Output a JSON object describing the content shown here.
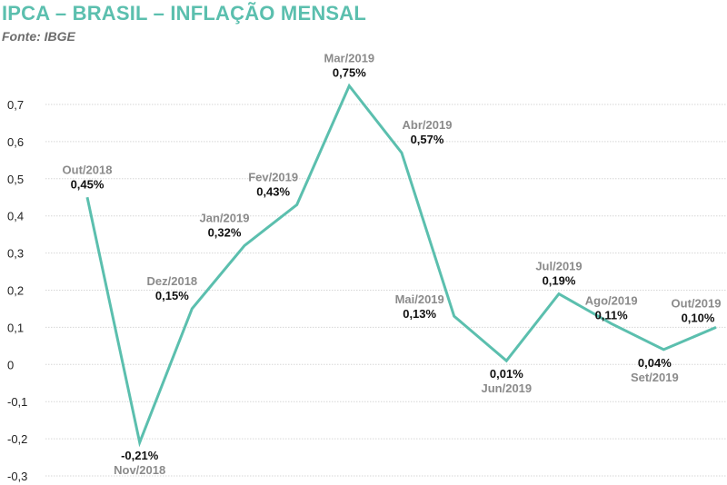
{
  "header": {
    "title": "IPCA – BRASIL – INFLAÇÃO MENSAL",
    "source": "Fonte: IBGE"
  },
  "colors": {
    "title": "#5bbfae",
    "line": "#5bbfae",
    "grid": "#d6d6d6"
  },
  "chart_data": {
    "type": "line",
    "title": "IPCA – BRASIL – INFLAÇÃO MENSAL",
    "xlabel": "",
    "ylabel": "",
    "ylim": [
      -0.3,
      0.7
    ],
    "yticks": [
      "-0,3",
      "-0,2",
      "-0,1",
      "0",
      "0,1",
      "0,2",
      "0,3",
      "0,4",
      "0,5",
      "0,6",
      "0,7"
    ],
    "grid": true,
    "categories": [
      "Out/2018",
      "Nov/2018",
      "Dez/2018",
      "Jan/2019",
      "Fev/2019",
      "Mar/2019",
      "Abr/2019",
      "Mai/2019",
      "Jun/2019",
      "Jul/2019",
      "Ago/2019",
      "Set/2019",
      "Out/2019"
    ],
    "values": [
      0.45,
      -0.21,
      0.15,
      0.32,
      0.43,
      0.75,
      0.57,
      0.13,
      0.01,
      0.19,
      0.11,
      0.04,
      0.1
    ],
    "value_labels": [
      "0,45%",
      "-0,21%",
      "0,15%",
      "0,32%",
      "0,43%",
      "0,75%",
      "0,57%",
      "0,13%",
      "0,01%",
      "0,19%",
      "0,11%",
      "0,04%",
      "0,10%"
    ]
  }
}
